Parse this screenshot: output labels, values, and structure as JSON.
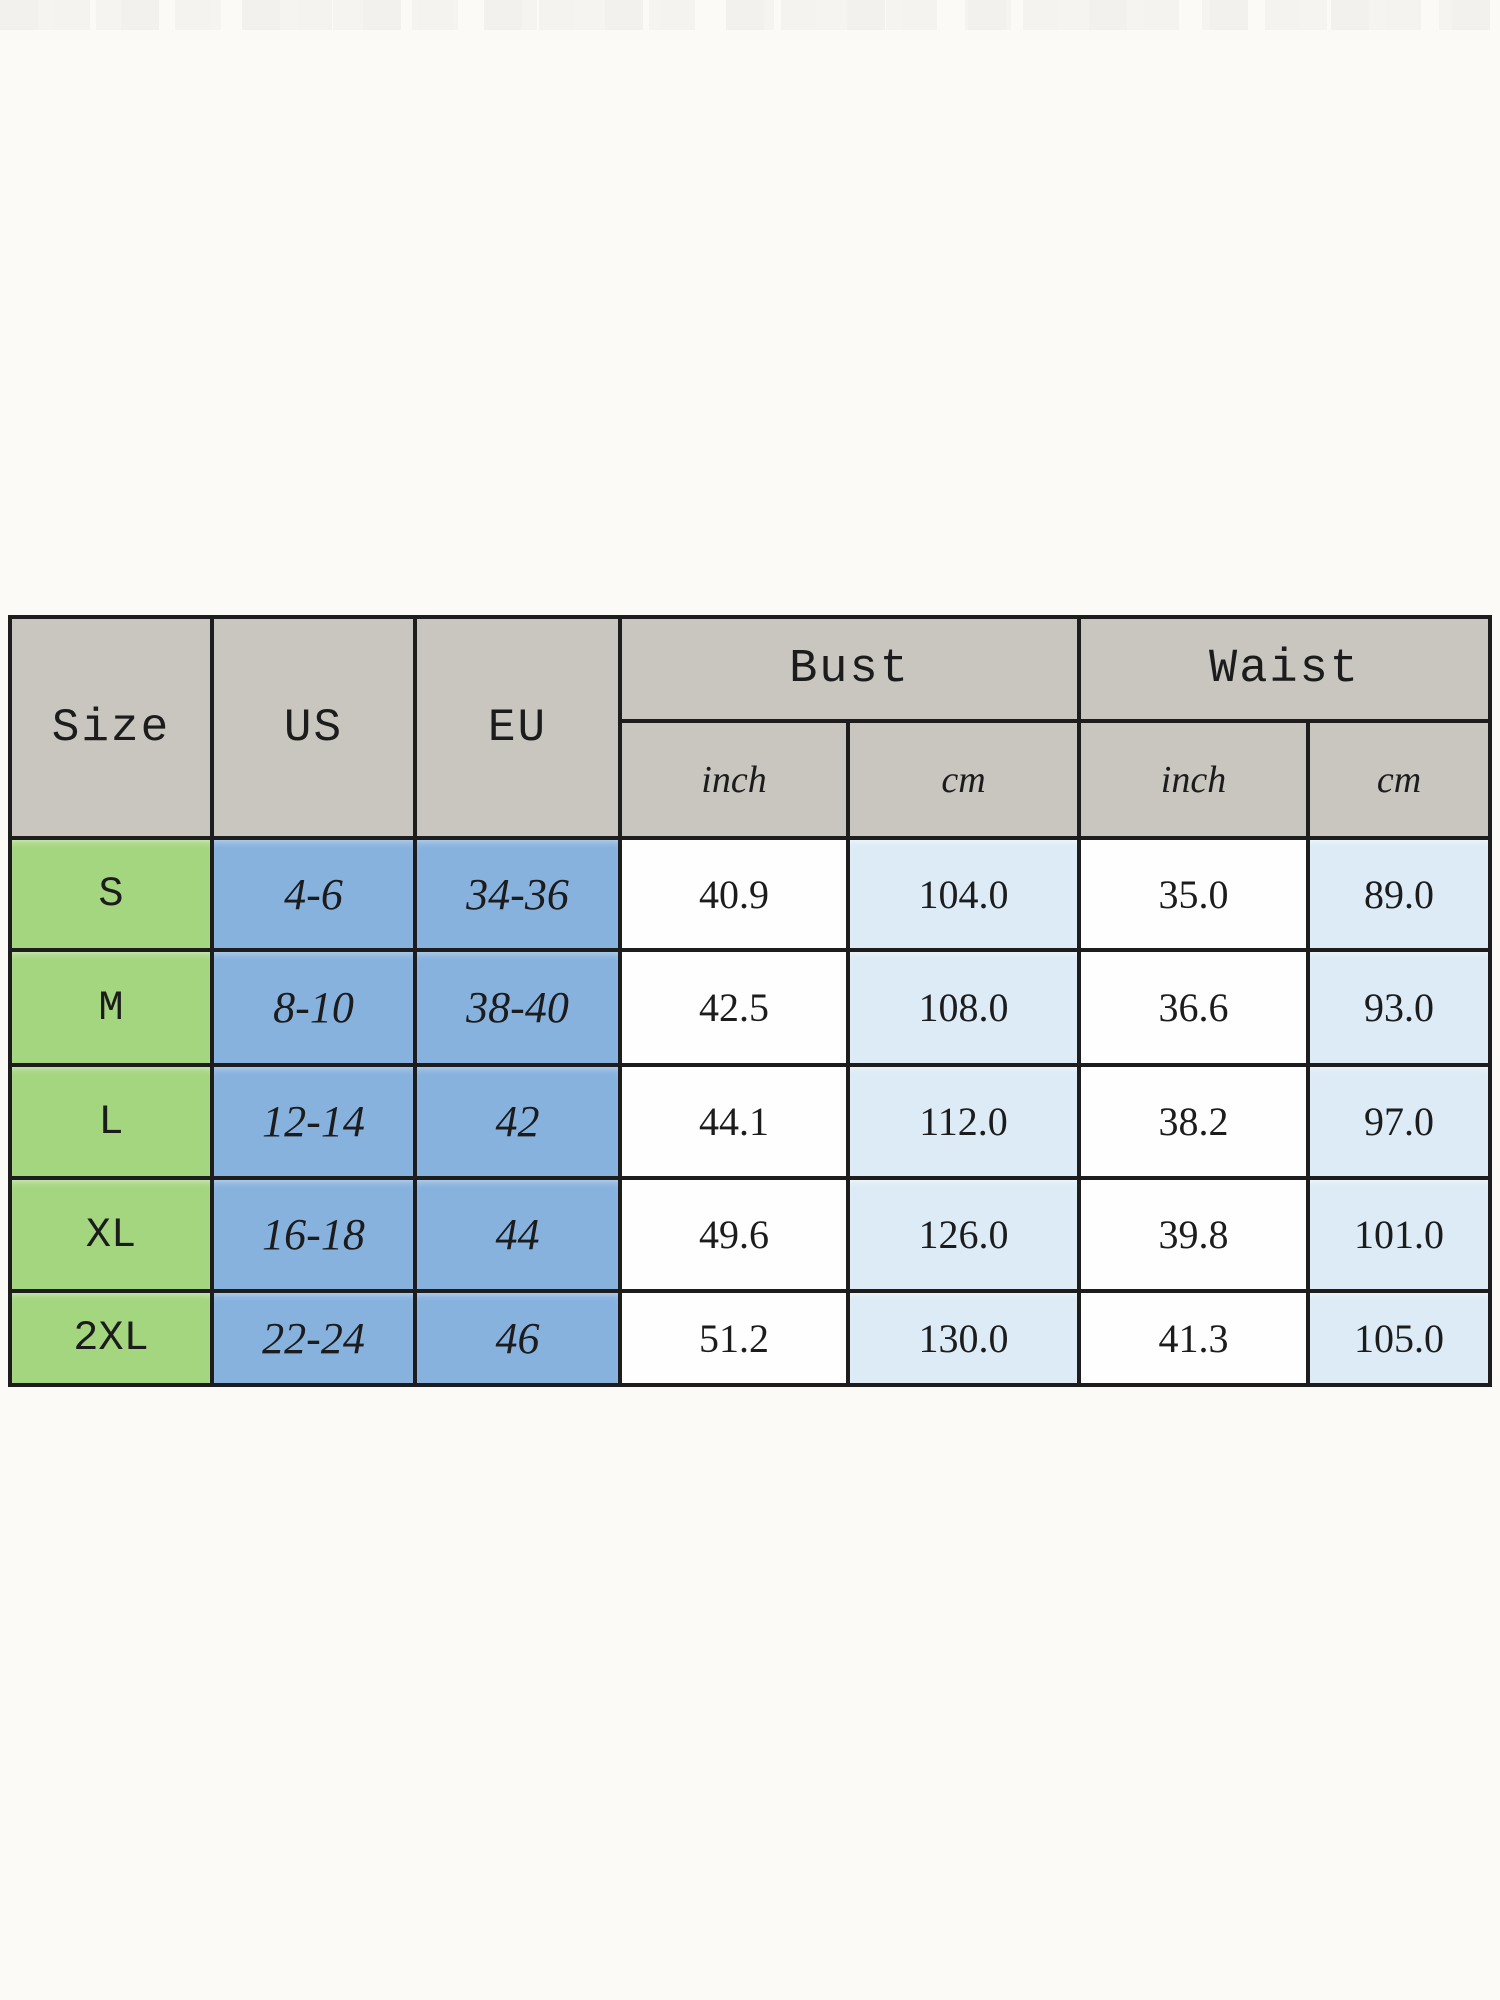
{
  "colors": {
    "page_background": "#fbfaf7",
    "header_gray": "#c9c5bf",
    "size_green": "#a4d57f",
    "us_eu_blue": "#87b2de",
    "cm_light_blue": "#dcebf5",
    "inch_white": "#fefefe",
    "grid_line": "#1d1d1d",
    "text": "#1c1c1c"
  },
  "chart_data": {
    "type": "table",
    "headers": {
      "size": "Size",
      "us": "US",
      "eu": "EU",
      "bust": "Bust",
      "waist": "Waist",
      "unit_inch": "inch",
      "unit_cm": "cm"
    },
    "column_groups": [
      {
        "label": "Bust",
        "sub_columns": [
          "inch",
          "cm"
        ]
      },
      {
        "label": "Waist",
        "sub_columns": [
          "inch",
          "cm"
        ]
      }
    ],
    "rows": [
      {
        "size": "S",
        "us": "4-6",
        "eu": "34-36",
        "bust_inch": "40.9",
        "bust_cm": "104.0",
        "waist_inch": "35.0",
        "waist_cm": "89.0"
      },
      {
        "size": "M",
        "us": "8-10",
        "eu": "38-40",
        "bust_inch": "42.5",
        "bust_cm": "108.0",
        "waist_inch": "36.6",
        "waist_cm": "93.0"
      },
      {
        "size": "L",
        "us": "12-14",
        "eu": "42",
        "bust_inch": "44.1",
        "bust_cm": "112.0",
        "waist_inch": "38.2",
        "waist_cm": "97.0"
      },
      {
        "size": "XL",
        "us": "16-18",
        "eu": "44",
        "bust_inch": "49.6",
        "bust_cm": "126.0",
        "waist_inch": "39.8",
        "waist_cm": "101.0"
      },
      {
        "size": "2XL",
        "us": "22-24",
        "eu": "46",
        "bust_inch": "51.2",
        "bust_cm": "130.0",
        "waist_inch": "41.3",
        "waist_cm": "105.0"
      }
    ]
  }
}
